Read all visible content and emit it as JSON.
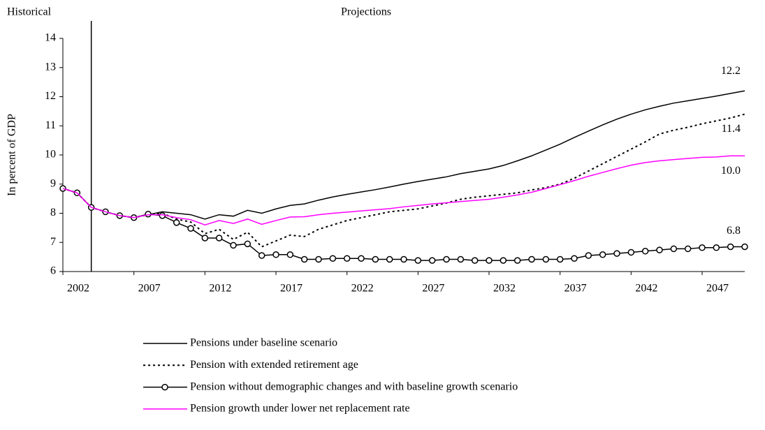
{
  "chart_data": {
    "type": "line",
    "ylabel": "In percent of GDP",
    "annotations": [
      "Historical",
      "Projections"
    ],
    "divider_x": 2004,
    "x": [
      2002,
      2003,
      2004,
      2005,
      2006,
      2007,
      2008,
      2009,
      2010,
      2011,
      2012,
      2013,
      2014,
      2015,
      2016,
      2017,
      2018,
      2019,
      2020,
      2021,
      2022,
      2023,
      2024,
      2025,
      2026,
      2027,
      2028,
      2029,
      2030,
      2031,
      2032,
      2033,
      2034,
      2035,
      2036,
      2037,
      2038,
      2039,
      2040,
      2041,
      2042,
      2043,
      2044,
      2045,
      2046,
      2047,
      2048,
      2049,
      2050
    ],
    "xlim": [
      2002,
      2050
    ],
    "xticks": [
      2002,
      2007,
      2012,
      2017,
      2022,
      2027,
      2032,
      2037,
      2042,
      2047
    ],
    "ylim": [
      6,
      14
    ],
    "yticks": [
      6,
      7,
      8,
      9,
      10,
      11,
      12,
      13,
      14
    ],
    "series": [
      {
        "name": "Pensions under baseline scenario",
        "color": "#000000",
        "dash": "solid",
        "marker": "none",
        "end_label": "12.2",
        "values": [
          8.85,
          8.7,
          8.2,
          8.05,
          7.92,
          7.85,
          7.95,
          8.05,
          8.0,
          7.95,
          7.8,
          7.95,
          7.9,
          8.1,
          8.0,
          8.15,
          8.27,
          8.32,
          8.45,
          8.56,
          8.65,
          8.73,
          8.81,
          8.9,
          9.0,
          9.09,
          9.17,
          9.25,
          9.36,
          9.44,
          9.52,
          9.64,
          9.8,
          9.97,
          10.17,
          10.37,
          10.6,
          10.82,
          11.03,
          11.23,
          11.4,
          11.55,
          11.67,
          11.78,
          11.86,
          11.94,
          12.02,
          12.11,
          12.2
        ]
      },
      {
        "name": "Pension with extended retirement age",
        "color": "#000000",
        "dash": "dotted",
        "marker": "none",
        "end_label": "11.4",
        "values": [
          8.85,
          8.7,
          8.2,
          8.05,
          7.92,
          7.85,
          7.95,
          8.0,
          7.8,
          7.7,
          7.3,
          7.45,
          7.1,
          7.35,
          6.85,
          7.05,
          7.25,
          7.2,
          7.45,
          7.6,
          7.75,
          7.85,
          7.95,
          8.05,
          8.1,
          8.15,
          8.25,
          8.35,
          8.48,
          8.55,
          8.6,
          8.65,
          8.7,
          8.8,
          8.88,
          9.0,
          9.2,
          9.45,
          9.7,
          9.95,
          10.2,
          10.45,
          10.72,
          10.85,
          10.95,
          11.07,
          11.17,
          11.27,
          11.4
        ]
      },
      {
        "name": "Pension without demographic changes and with baseline growth scenario",
        "color": "#000000",
        "dash": "solid",
        "marker": "circle",
        "end_label": "6.8",
        "values": [
          8.85,
          8.7,
          8.2,
          8.05,
          7.92,
          7.85,
          7.97,
          7.92,
          7.68,
          7.48,
          7.15,
          7.15,
          6.9,
          6.95,
          6.55,
          6.58,
          6.58,
          6.42,
          6.42,
          6.45,
          6.45,
          6.45,
          6.42,
          6.42,
          6.42,
          6.38,
          6.38,
          6.42,
          6.42,
          6.38,
          6.38,
          6.38,
          6.38,
          6.42,
          6.42,
          6.42,
          6.45,
          6.55,
          6.58,
          6.62,
          6.66,
          6.7,
          6.74,
          6.78,
          6.78,
          6.82,
          6.82,
          6.85,
          6.85
        ]
      },
      {
        "name": "Pension growth under lower net replacement rate",
        "color": "#ff00ff",
        "dash": "solid",
        "marker": "none",
        "end_label": "10.0",
        "values": [
          8.85,
          8.7,
          8.2,
          8.05,
          7.92,
          7.85,
          7.95,
          7.95,
          7.85,
          7.78,
          7.6,
          7.75,
          7.65,
          7.8,
          7.62,
          7.75,
          7.87,
          7.88,
          7.95,
          8.0,
          8.04,
          8.08,
          8.12,
          8.16,
          8.22,
          8.27,
          8.32,
          8.36,
          8.4,
          8.44,
          8.48,
          8.55,
          8.63,
          8.72,
          8.85,
          8.98,
          9.12,
          9.27,
          9.4,
          9.53,
          9.65,
          9.74,
          9.8,
          9.84,
          9.88,
          9.92,
          9.93,
          9.97,
          9.97
        ]
      }
    ]
  }
}
